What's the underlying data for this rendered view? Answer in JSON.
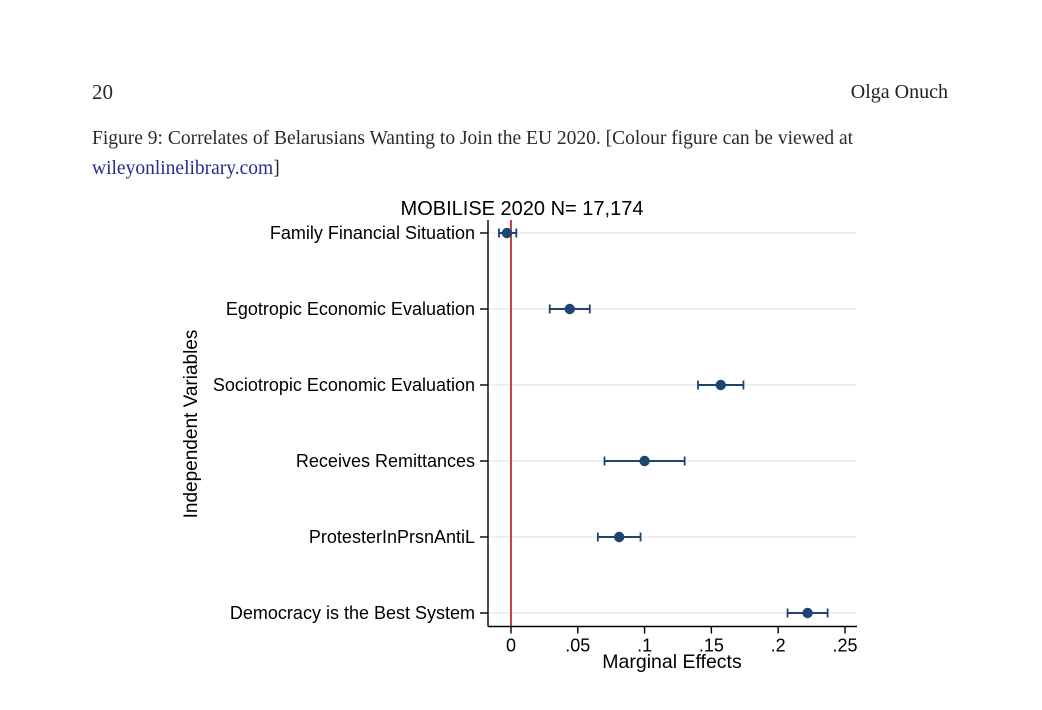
{
  "page": {
    "page_number": "20",
    "author": "Olga Onuch",
    "caption": {
      "prefix": "Figure 9: Correlates of Belarusians Wanting to Join the EU 2020. [Colour figure can be viewed at",
      "link_text": "wileyonlinelibrary.com",
      "suffix": "]"
    }
  },
  "colors": {
    "marker": "#1e4570",
    "error_bar": "#1e4570",
    "ref_line": "#c84040",
    "gridline": "#f0f0f0",
    "axis": "#000000",
    "link": "#262d8c"
  },
  "chart_data": {
    "type": "scatter",
    "subtype": "coefficient-plot-with-95ci",
    "title": "MOBILISE 2020 N= 17,174",
    "xlabel": "Marginal Effects",
    "ylabel": "Independent Variables",
    "grid": "horizontal-light-per-category",
    "legend": "none",
    "xlim": [
      -0.0172,
      0.259
    ],
    "reference_line_x": 0,
    "x_ticks": [
      {
        "value": 0,
        "label": "0"
      },
      {
        "value": 0.05,
        "label": ".05"
      },
      {
        "value": 0.1,
        "label": ".1"
      },
      {
        "value": 0.15,
        "label": ".15"
      },
      {
        "value": 0.2,
        "label": ".2"
      },
      {
        "value": 0.25,
        "label": ".25"
      }
    ],
    "categories": [
      "Family Financial Situation",
      "Egotropic Economic Evaluation",
      "Sociotropic Economic Evaluation",
      "Receives Remittances",
      "ProtesterInPrsnAntiL",
      "Democracy is the Best System"
    ],
    "points": [
      {
        "label": "Family Financial Situation",
        "estimate": -0.003,
        "ci_low": -0.009,
        "ci_high": 0.004
      },
      {
        "label": "Egotropic Economic Evaluation",
        "estimate": 0.044,
        "ci_low": 0.029,
        "ci_high": 0.059
      },
      {
        "label": "Sociotropic Economic Evaluation",
        "estimate": 0.157,
        "ci_low": 0.14,
        "ci_high": 0.174
      },
      {
        "label": "Receives Remittances",
        "estimate": 0.1,
        "ci_low": 0.07,
        "ci_high": 0.13
      },
      {
        "label": "ProtesterInPrsnAntiL",
        "estimate": 0.081,
        "ci_low": 0.065,
        "ci_high": 0.097
      },
      {
        "label": "Democracy is the Best System",
        "estimate": 0.222,
        "ci_low": 0.207,
        "ci_high": 0.237
      }
    ]
  }
}
